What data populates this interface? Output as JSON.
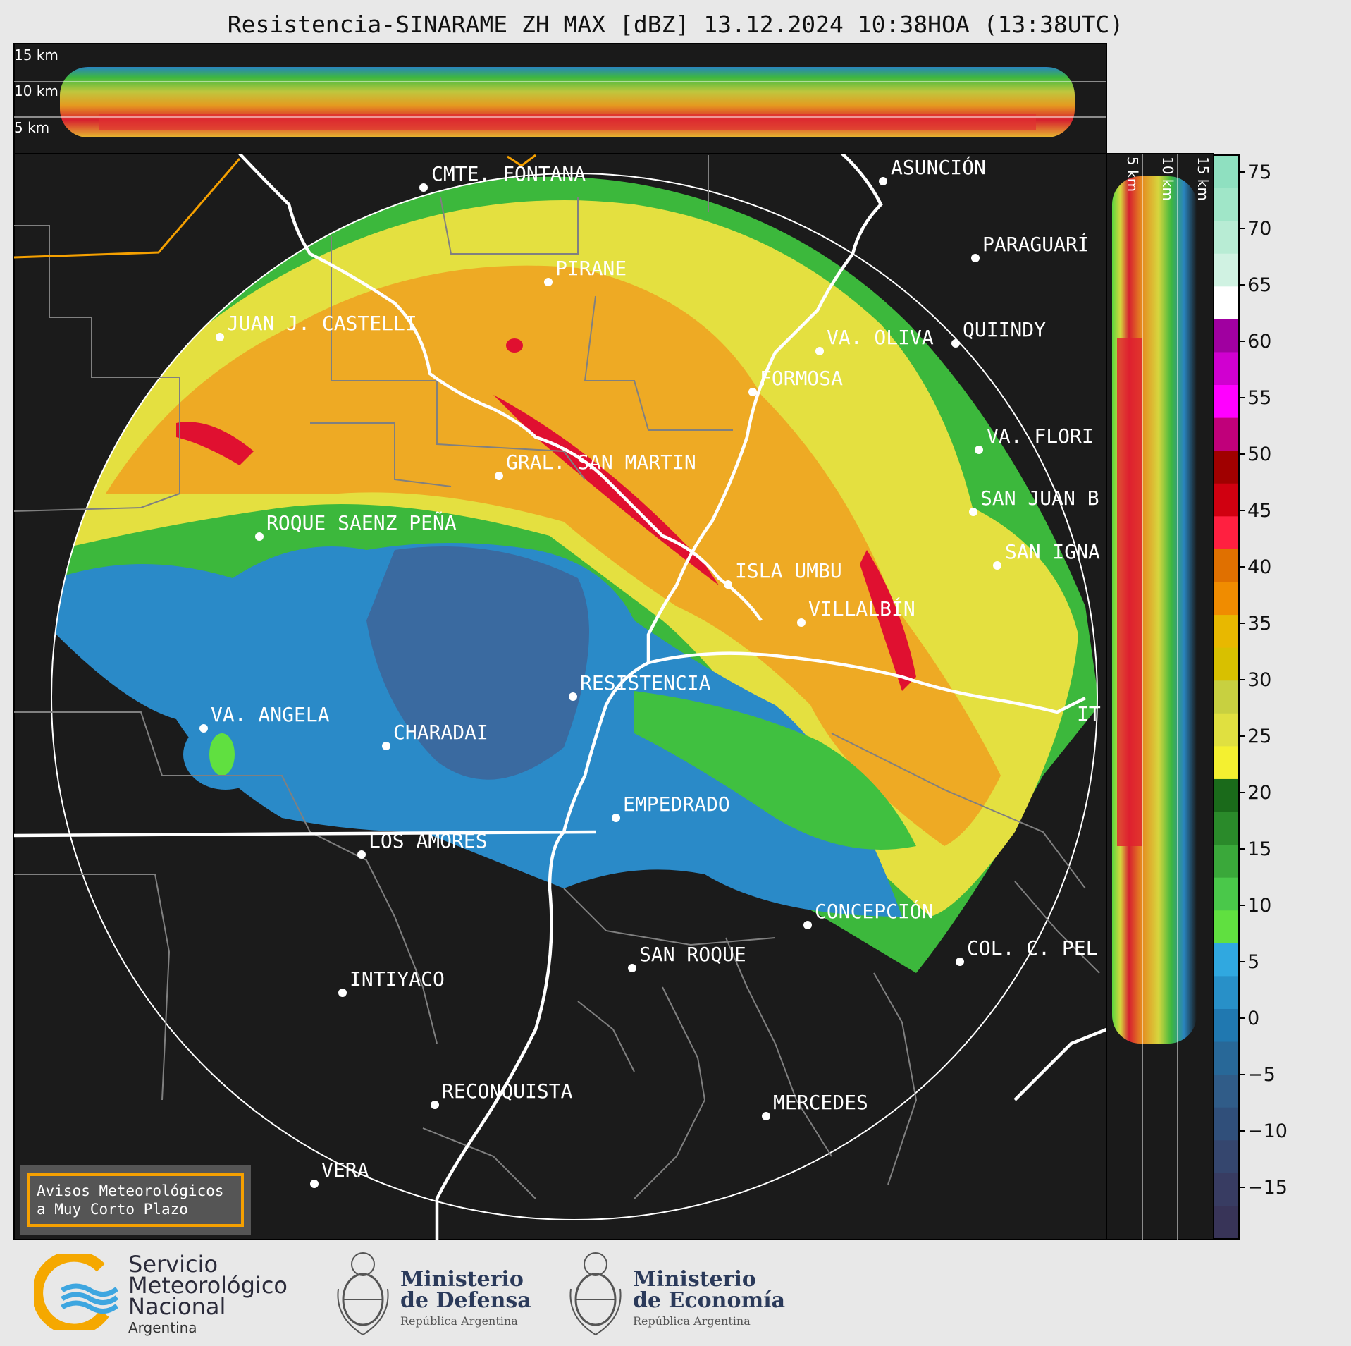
{
  "title": "Resistencia-SINARAME ZH MAX [dBZ] 13.12.2024 10:38HOA (13:38UTC)",
  "top_panel": {
    "height_labels": [
      "15 km",
      "10 km",
      "5 km"
    ]
  },
  "side_panel": {
    "height_labels": [
      "5 km",
      "10 km",
      "15 km"
    ]
  },
  "cities": [
    {
      "name": "CMTE. FONTANA",
      "id": "cmte-fontana"
    },
    {
      "name": "ASUNCIÓN",
      "id": "asuncion"
    },
    {
      "name": "PARAGUARÍ",
      "id": "paraguari"
    },
    {
      "name": "PIRANE",
      "id": "pirane"
    },
    {
      "name": "JUAN J. CASTELLI",
      "id": "juan-j-castelli"
    },
    {
      "name": "VA. OLIVA",
      "id": "va-oliva"
    },
    {
      "name": "QUIINDY",
      "id": "quiindy"
    },
    {
      "name": "FORMOSA",
      "id": "formosa"
    },
    {
      "name": "VA. FLORI",
      "id": "va-flori"
    },
    {
      "name": "GRAL. SAN MARTIN",
      "id": "gral-san-martin"
    },
    {
      "name": "SAN JUAN B",
      "id": "san-juan-b"
    },
    {
      "name": "ROQUE SAENZ PEÑA",
      "id": "roque-saenz-pena"
    },
    {
      "name": "SAN IGNA",
      "id": "san-igna"
    },
    {
      "name": "ISLA UMBU",
      "id": "isla-umbu"
    },
    {
      "name": "VILLALBÍN",
      "id": "villalbin"
    },
    {
      "name": "RESISTENCIA",
      "id": "resistencia"
    },
    {
      "name": "VA. ANGELA",
      "id": "va-angela"
    },
    {
      "name": "CHARADAI",
      "id": "charadai"
    },
    {
      "name": "IT",
      "id": "it"
    },
    {
      "name": "EMPEDRADO",
      "id": "empedrado"
    },
    {
      "name": "LOS AMORES",
      "id": "los-amores"
    },
    {
      "name": "CONCEPCIÓN",
      "id": "concepcion"
    },
    {
      "name": "SAN ROQUE",
      "id": "san-roque"
    },
    {
      "name": "COL. C. PEL",
      "id": "col-c-pel"
    },
    {
      "name": "INTIYACO",
      "id": "intiyaco"
    },
    {
      "name": "RECONQUISTA",
      "id": "reconquista"
    },
    {
      "name": "MERCEDES",
      "id": "mercedes"
    },
    {
      "name": "VERA",
      "id": "vera"
    }
  ],
  "colorbar": {
    "unit": "dBZ",
    "ticks": [
      "75",
      "70",
      "65",
      "60",
      "55",
      "50",
      "45",
      "40",
      "35",
      "30",
      "25",
      "20",
      "15",
      "10",
      "5",
      "0",
      "−5",
      "−10",
      "−15"
    ],
    "colors": [
      "#8fe0c0",
      "#a0e6c8",
      "#b8ecd4",
      "#d0f2e2",
      "#ffffff",
      "#a000a0",
      "#d000d0",
      "#ff00ff",
      "#c0007a",
      "#a00000",
      "#d00010",
      "#ff2040",
      "#e07000",
      "#f08c00",
      "#e8b800",
      "#d8c000",
      "#c8d040",
      "#e0e040",
      "#f4f030",
      "#1a6a1a",
      "#2a8a2a",
      "#3aa83a",
      "#4ac84a",
      "#60e040",
      "#30a8e0",
      "#2890c8",
      "#2078b0",
      "#286898",
      "#305c88",
      "#304f7a",
      "#35466e",
      "#383c62",
      "#383458"
    ]
  },
  "warning_box": {
    "line1": "Avisos Meteorológicos",
    "line2": "a Muy Corto Plazo"
  },
  "footer": {
    "smn": {
      "line1": "Servicio",
      "line2": "Meteorológico",
      "line3": "Nacional",
      "line4": "Argentina"
    },
    "defensa": {
      "line1": "Ministerio",
      "line2": "de Defensa",
      "sub": "República Argentina"
    },
    "economia": {
      "line1": "Ministerio",
      "line2": "de Economía",
      "sub": "República Argentina"
    }
  }
}
